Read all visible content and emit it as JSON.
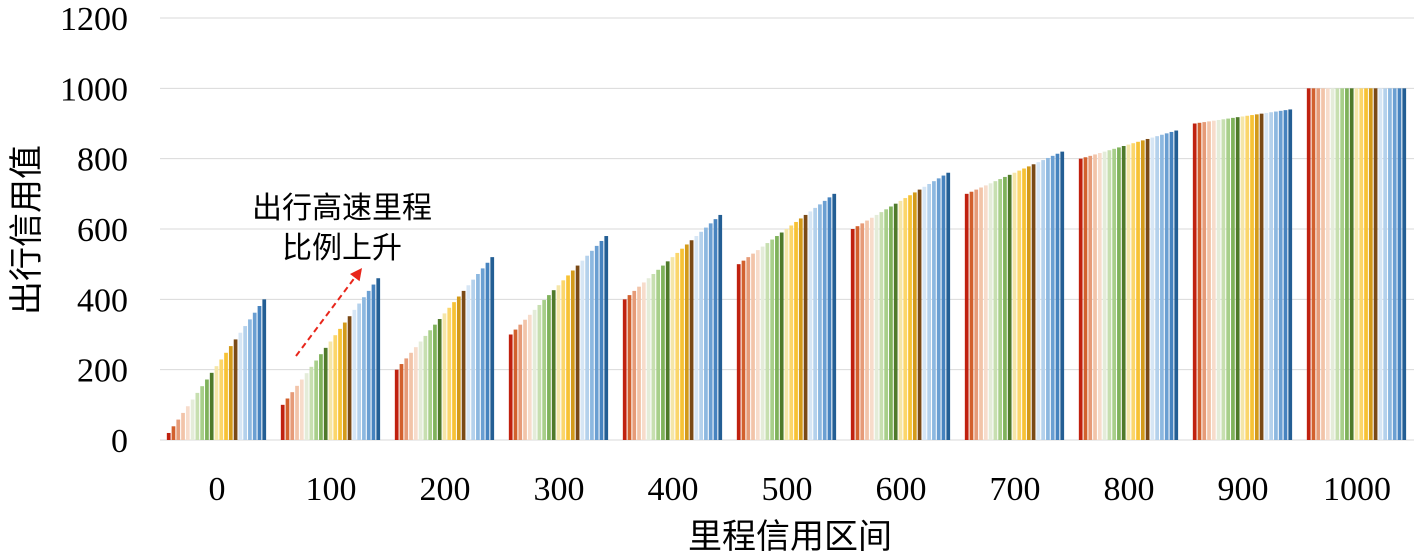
{
  "chart_data": {
    "type": "bar",
    "xlabel": "里程信用区间",
    "ylabel": "出行信用值",
    "ylim": [
      0,
      1200
    ],
    "yticks": [
      0,
      200,
      400,
      600,
      800,
      1000,
      1200
    ],
    "grid": true,
    "categories": [
      "0",
      "100",
      "200",
      "300",
      "400",
      "500",
      "600",
      "700",
      "800",
      "900",
      "1000"
    ],
    "bars_per_category": 21,
    "group_values": [
      [
        20,
        39,
        58,
        77,
        96,
        115,
        134,
        153,
        172,
        191,
        210,
        229,
        248,
        267,
        286,
        305,
        324,
        343,
        362,
        381,
        400
      ],
      [
        100,
        118,
        136,
        154,
        172,
        190,
        208,
        226,
        244,
        262,
        280,
        298,
        316,
        334,
        352,
        370,
        388,
        406,
        424,
        442,
        460
      ],
      [
        200,
        216,
        232,
        248,
        264,
        280,
        296,
        312,
        328,
        344,
        360,
        376,
        392,
        408,
        424,
        440,
        456,
        472,
        488,
        504,
        520
      ],
      [
        300,
        314,
        328,
        342,
        356,
        370,
        384,
        398,
        412,
        426,
        440,
        454,
        468,
        482,
        496,
        510,
        524,
        538,
        552,
        566,
        580
      ],
      [
        400,
        412,
        424,
        436,
        448,
        460,
        472,
        484,
        496,
        508,
        520,
        532,
        544,
        556,
        568,
        580,
        592,
        604,
        616,
        628,
        640
      ],
      [
        500,
        510,
        520,
        530,
        540,
        550,
        560,
        570,
        580,
        590,
        600,
        610,
        620,
        630,
        640,
        650,
        660,
        670,
        680,
        690,
        700
      ],
      [
        600,
        608,
        616,
        624,
        632,
        640,
        648,
        656,
        664,
        672,
        680,
        688,
        696,
        704,
        712,
        720,
        728,
        736,
        744,
        752,
        760
      ],
      [
        700,
        706,
        712,
        718,
        724,
        730,
        736,
        742,
        748,
        754,
        760,
        766,
        772,
        778,
        784,
        790,
        796,
        802,
        808,
        814,
        820
      ],
      [
        800,
        804,
        808,
        812,
        816,
        820,
        824,
        828,
        832,
        836,
        840,
        844,
        848,
        852,
        856,
        860,
        864,
        868,
        872,
        876,
        880
      ],
      [
        900,
        902,
        904,
        906,
        908,
        910,
        912,
        914,
        916,
        918,
        920,
        922,
        924,
        926,
        928,
        930,
        932,
        934,
        936,
        938,
        940
      ],
      [
        1000,
        1000,
        1000,
        1000,
        1000,
        1000,
        1000,
        1000,
        1000,
        1000,
        1000,
        1000,
        1000,
        1000,
        1000,
        1000,
        1000,
        1000,
        1000,
        1000,
        1000
      ]
    ],
    "bar_colors": [
      "#c0210f",
      "#d2602d",
      "#e69b78",
      "#f2c4a9",
      "#f7dccb",
      "#e4ecd9",
      "#c7dfb0",
      "#a8cf8a",
      "#7fb25b",
      "#4f7a2a",
      "#f5e6a8",
      "#fbd66b",
      "#f7c235",
      "#d39a1a",
      "#7a4a16",
      "#d6e6f5",
      "#b4d1ec",
      "#8db8e0",
      "#6a9fd2",
      "#4683bf",
      "#235e94"
    ],
    "annotation": {
      "lines": [
        "出行高速里程",
        "比例上升"
      ],
      "arrow_color": "#e8261b"
    }
  }
}
